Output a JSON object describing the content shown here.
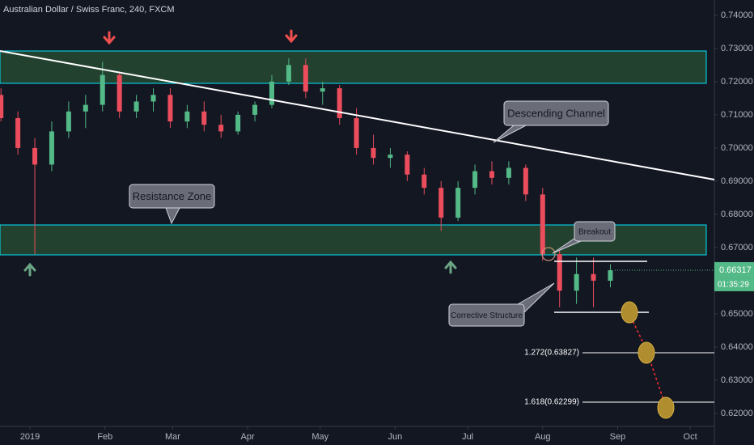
{
  "chart_data": {
    "type": "candlestick",
    "title": "Australian Dollar / Swiss Franc, 240, FXCM",
    "x": [
      -12,
      -5,
      2,
      9,
      16,
      23,
      30,
      37,
      44,
      51,
      58,
      65,
      72,
      79,
      86,
      93,
      100,
      107,
      114,
      121,
      128,
      135,
      142,
      149,
      156,
      163,
      170,
      177,
      184,
      191,
      198,
      205,
      212,
      219,
      226,
      233,
      240
    ],
    "open": [
      0.716,
      0.709,
      0.7,
      0.695,
      0.705,
      0.711,
      0.713,
      0.722,
      0.711,
      0.714,
      0.716,
      0.708,
      0.711,
      0.707,
      0.705,
      0.71,
      0.713,
      0.72,
      0.725,
      0.717,
      0.718,
      0.709,
      0.7,
      0.697,
      0.698,
      0.692,
      0.688,
      0.679,
      0.688,
      0.693,
      0.691,
      0.694,
      0.686,
      0.668,
      0.657,
      0.662,
      0.66
    ],
    "high": [
      0.718,
      0.711,
      0.703,
      0.708,
      0.714,
      0.716,
      0.726,
      0.723,
      0.716,
      0.718,
      0.718,
      0.713,
      0.714,
      0.71,
      0.711,
      0.714,
      0.722,
      0.727,
      0.727,
      0.72,
      0.719,
      0.712,
      0.704,
      0.7,
      0.699,
      0.694,
      0.69,
      0.69,
      0.695,
      0.696,
      0.696,
      0.695,
      0.688,
      0.669,
      0.667,
      0.667,
      0.665
    ],
    "low": [
      0.708,
      0.698,
      0.668,
      0.693,
      0.703,
      0.706,
      0.711,
      0.709,
      0.709,
      0.711,
      0.706,
      0.706,
      0.705,
      0.703,
      0.704,
      0.708,
      0.712,
      0.719,
      0.715,
      0.713,
      0.707,
      0.698,
      0.695,
      0.694,
      0.69,
      0.686,
      0.675,
      0.678,
      0.686,
      0.689,
      0.689,
      0.684,
      0.666,
      0.652,
      0.653,
      0.652,
      0.658
    ],
    "close": [
      0.709,
      0.7,
      0.695,
      0.705,
      0.711,
      0.713,
      0.722,
      0.711,
      0.714,
      0.716,
      0.708,
      0.711,
      0.707,
      0.705,
      0.71,
      0.713,
      0.72,
      0.725,
      0.717,
      0.718,
      0.709,
      0.7,
      0.697,
      0.698,
      0.692,
      0.688,
      0.679,
      0.688,
      0.693,
      0.691,
      0.694,
      0.686,
      0.668,
      0.657,
      0.662,
      0.66,
      0.66317
    ],
    "up_color": "#53b987",
    "down_color": "#eb4d5c",
    "xlim": [
      -12.4,
      283
    ],
    "xticks": [
      {
        "value": 0,
        "label": "2019"
      },
      {
        "value": 31,
        "label": "Feb"
      },
      {
        "value": 59,
        "label": "Mar"
      },
      {
        "value": 90,
        "label": "Apr"
      },
      {
        "value": 120,
        "label": "May"
      },
      {
        "value": 151,
        "label": "Jun"
      },
      {
        "value": 181,
        "label": "Jul"
      },
      {
        "value": 212,
        "label": "Aug"
      },
      {
        "value": 243,
        "label": "Sep"
      },
      {
        "value": 273,
        "label": "Oct"
      }
    ],
    "ylim": [
      0.6161,
      0.7446
    ],
    "yticks": [
      {
        "value": 0.74,
        "label": "0.74000"
      },
      {
        "value": 0.73,
        "label": "0.73000"
      },
      {
        "value": 0.72,
        "label": "0.72000"
      },
      {
        "value": 0.71,
        "label": "0.71000"
      },
      {
        "value": 0.7,
        "label": "0.70000"
      },
      {
        "value": 0.69,
        "label": "0.69000"
      },
      {
        "value": 0.68,
        "label": "0.68000"
      },
      {
        "value": 0.67,
        "label": "0.67000"
      },
      {
        "value": 0.65,
        "label": "0.65000"
      },
      {
        "value": 0.64,
        "label": "0.64000"
      },
      {
        "value": 0.63,
        "label": "0.63000"
      },
      {
        "value": 0.62,
        "label": "0.62000"
      }
    ],
    "last_price": 0.66317,
    "countdown": "01:35:29",
    "callouts": [
      "Descending Channel",
      "Resistance Zone",
      "Breakout",
      "Corrective Structure"
    ],
    "fib_labels": [
      "1.272(0.63827)",
      "1.618(0.62299)"
    ]
  }
}
